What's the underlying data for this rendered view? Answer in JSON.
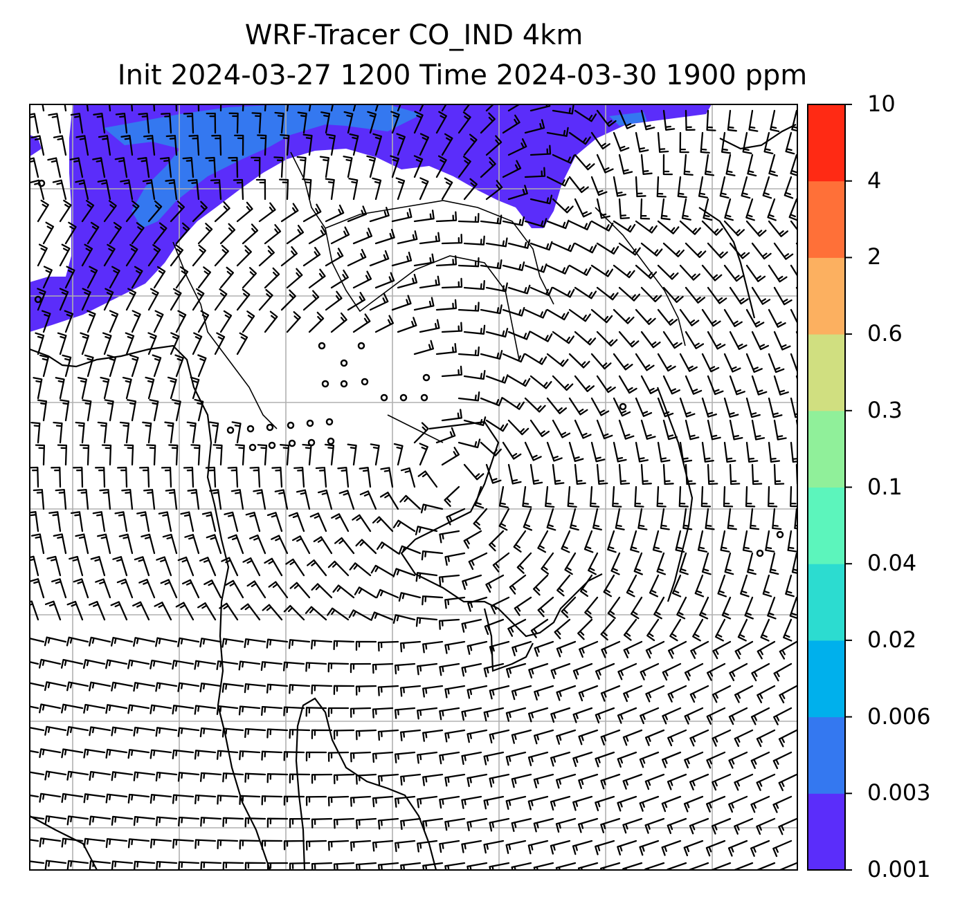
{
  "title": {
    "line1": "WRF-Tracer CO_IND 4km",
    "line2": "Init 2024-03-27 1200 Time 2024-03-30 1900 ppm"
  },
  "colorbar": {
    "levels": [
      "0.001",
      "0.003",
      "0.006",
      "0.02",
      "0.04",
      "0.1",
      "0.3",
      "0.6",
      "2",
      "4",
      "10"
    ],
    "colors": [
      "#5b2dfa",
      "#3478f0",
      "#00b0ec",
      "#2cdcd0",
      "#5cf5bc",
      "#90f09a",
      "#d0df80",
      "#fcb060",
      "#ff7038",
      "#ff2a14"
    ]
  },
  "map": {
    "field_colors": {
      "low": "#5b2dfa",
      "mid": "#3478f0"
    },
    "gridline_color": "#b0b0b0",
    "wind_barb_color": "#000000"
  }
}
